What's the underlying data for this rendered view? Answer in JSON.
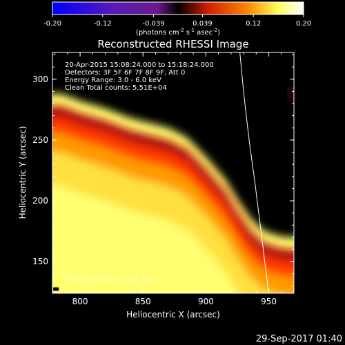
{
  "chart_data": {
    "type": "heatmap",
    "title": "Reconstructed RHESSI Image",
    "colorbar": {
      "min": -0.2,
      "max": 0.2,
      "ticks": [
        "-0.20",
        "-0.12",
        "-0.039",
        "0.039",
        "0.12",
        "0.20"
      ],
      "tick_values": [
        -0.2,
        -0.12,
        -0.039,
        0.039,
        0.12,
        0.2
      ],
      "unit_label": "(photons cm",
      "unit_exp1": "-2",
      "unit_mid": " s",
      "unit_exp2": "-1",
      "unit_mid2": " asec",
      "unit_exp3": "-2",
      "unit_end": ")",
      "colors": [
        "#0000ff",
        "#7a1aa8",
        "#000000",
        "#d21e00",
        "#ff8a00",
        "#ffff80",
        "#ffffff"
      ]
    },
    "annotations": {
      "time_range": "20-Apr-2015 15:08:24.000 to 15:18:24.000",
      "detectors": "Detectors: 3F 5F 6F 7F 8F 9F, Att 0",
      "energy": "Energy Range: 3.0 - 6.0 keV",
      "clean": "Clean    Total counts: 5.51E+04",
      "peak": "Position of Peak = (783, 126)"
    },
    "x_axis": {
      "label": "Heliocentric X (arcsec)",
      "range": [
        778,
        970
      ],
      "ticks": [
        800,
        850,
        900,
        950
      ],
      "tick_labels": [
        "800",
        "850",
        "900",
        "950"
      ]
    },
    "y_axis": {
      "label": "Heliocentric Y (arcsec)",
      "range": [
        124,
        322
      ],
      "ticks": [
        150,
        200,
        250,
        300
      ],
      "tick_labels": [
        "150",
        "200",
        "250",
        "300"
      ]
    },
    "emission_boundary": {
      "x": [
        785,
        800,
        820,
        840,
        855,
        870,
        885,
        900,
        915,
        925,
        935,
        945,
        955,
        965,
        970
      ],
      "y": [
        282,
        276,
        270,
        262,
        258,
        254,
        246,
        230,
        212,
        195,
        180,
        170,
        166,
        164,
        164
      ]
    },
    "limb": {
      "x": [
        927,
        929,
        931,
        933,
        935,
        937,
        939,
        941,
        943,
        945,
        947,
        949,
        950
      ],
      "y": [
        322,
        300,
        280,
        262,
        245,
        230,
        215,
        198,
        182,
        165,
        148,
        132,
        124
      ]
    },
    "peak": {
      "x": 783,
      "y": 126
    },
    "footer_timestamp": "29-Sep-2017 01:40"
  }
}
